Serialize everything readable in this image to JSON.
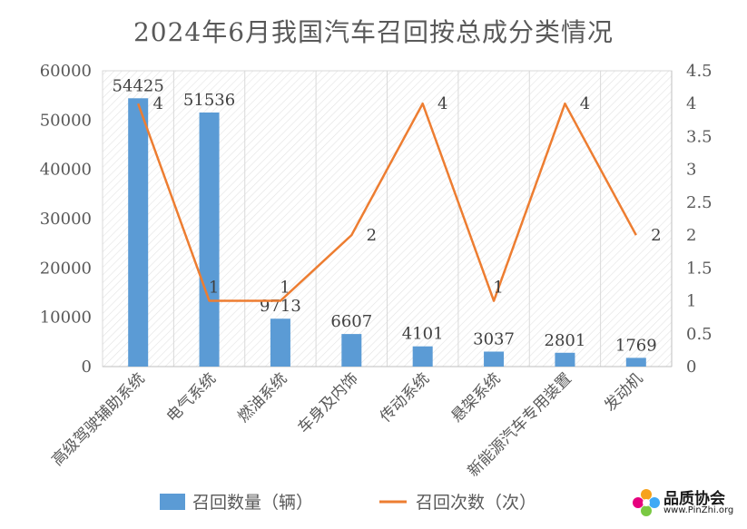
{
  "chart_data": {
    "type": "bar+line",
    "title": "2024年6月我国汽车召回按总成分类情况",
    "categories": [
      "高级驾驶辅助系统",
      "电气系统",
      "燃油系统",
      "车身及内饰",
      "传动系统",
      "悬架系统",
      "新能源汽车专用装置",
      "发动机"
    ],
    "series": [
      {
        "name": "召回数量（辆）",
        "type": "bar",
        "axis": "left",
        "color": "#5b9bd5",
        "values": [
          54425,
          51536,
          9713,
          6607,
          4101,
          3037,
          2801,
          1769
        ]
      },
      {
        "name": "召回次数（次）",
        "type": "line",
        "axis": "right",
        "color": "#ed7d31",
        "values": [
          4,
          1,
          1,
          2,
          4,
          1,
          4,
          2
        ]
      }
    ],
    "ylim_left": [
      0,
      60000
    ],
    "yticks_left": [
      "0",
      "10000",
      "20000",
      "30000",
      "40000",
      "50000",
      "60000"
    ],
    "ylim_right": [
      0,
      4.5
    ],
    "yticks_right": [
      "0",
      "0.5",
      "1",
      "1.5",
      "2",
      "2.5",
      "3",
      "3.5",
      "4",
      "4.5"
    ],
    "legend": "bottom",
    "grid": "hatched plot background"
  },
  "watermark": {
    "name": "品质协会",
    "url": "www.PinZhi.org"
  }
}
